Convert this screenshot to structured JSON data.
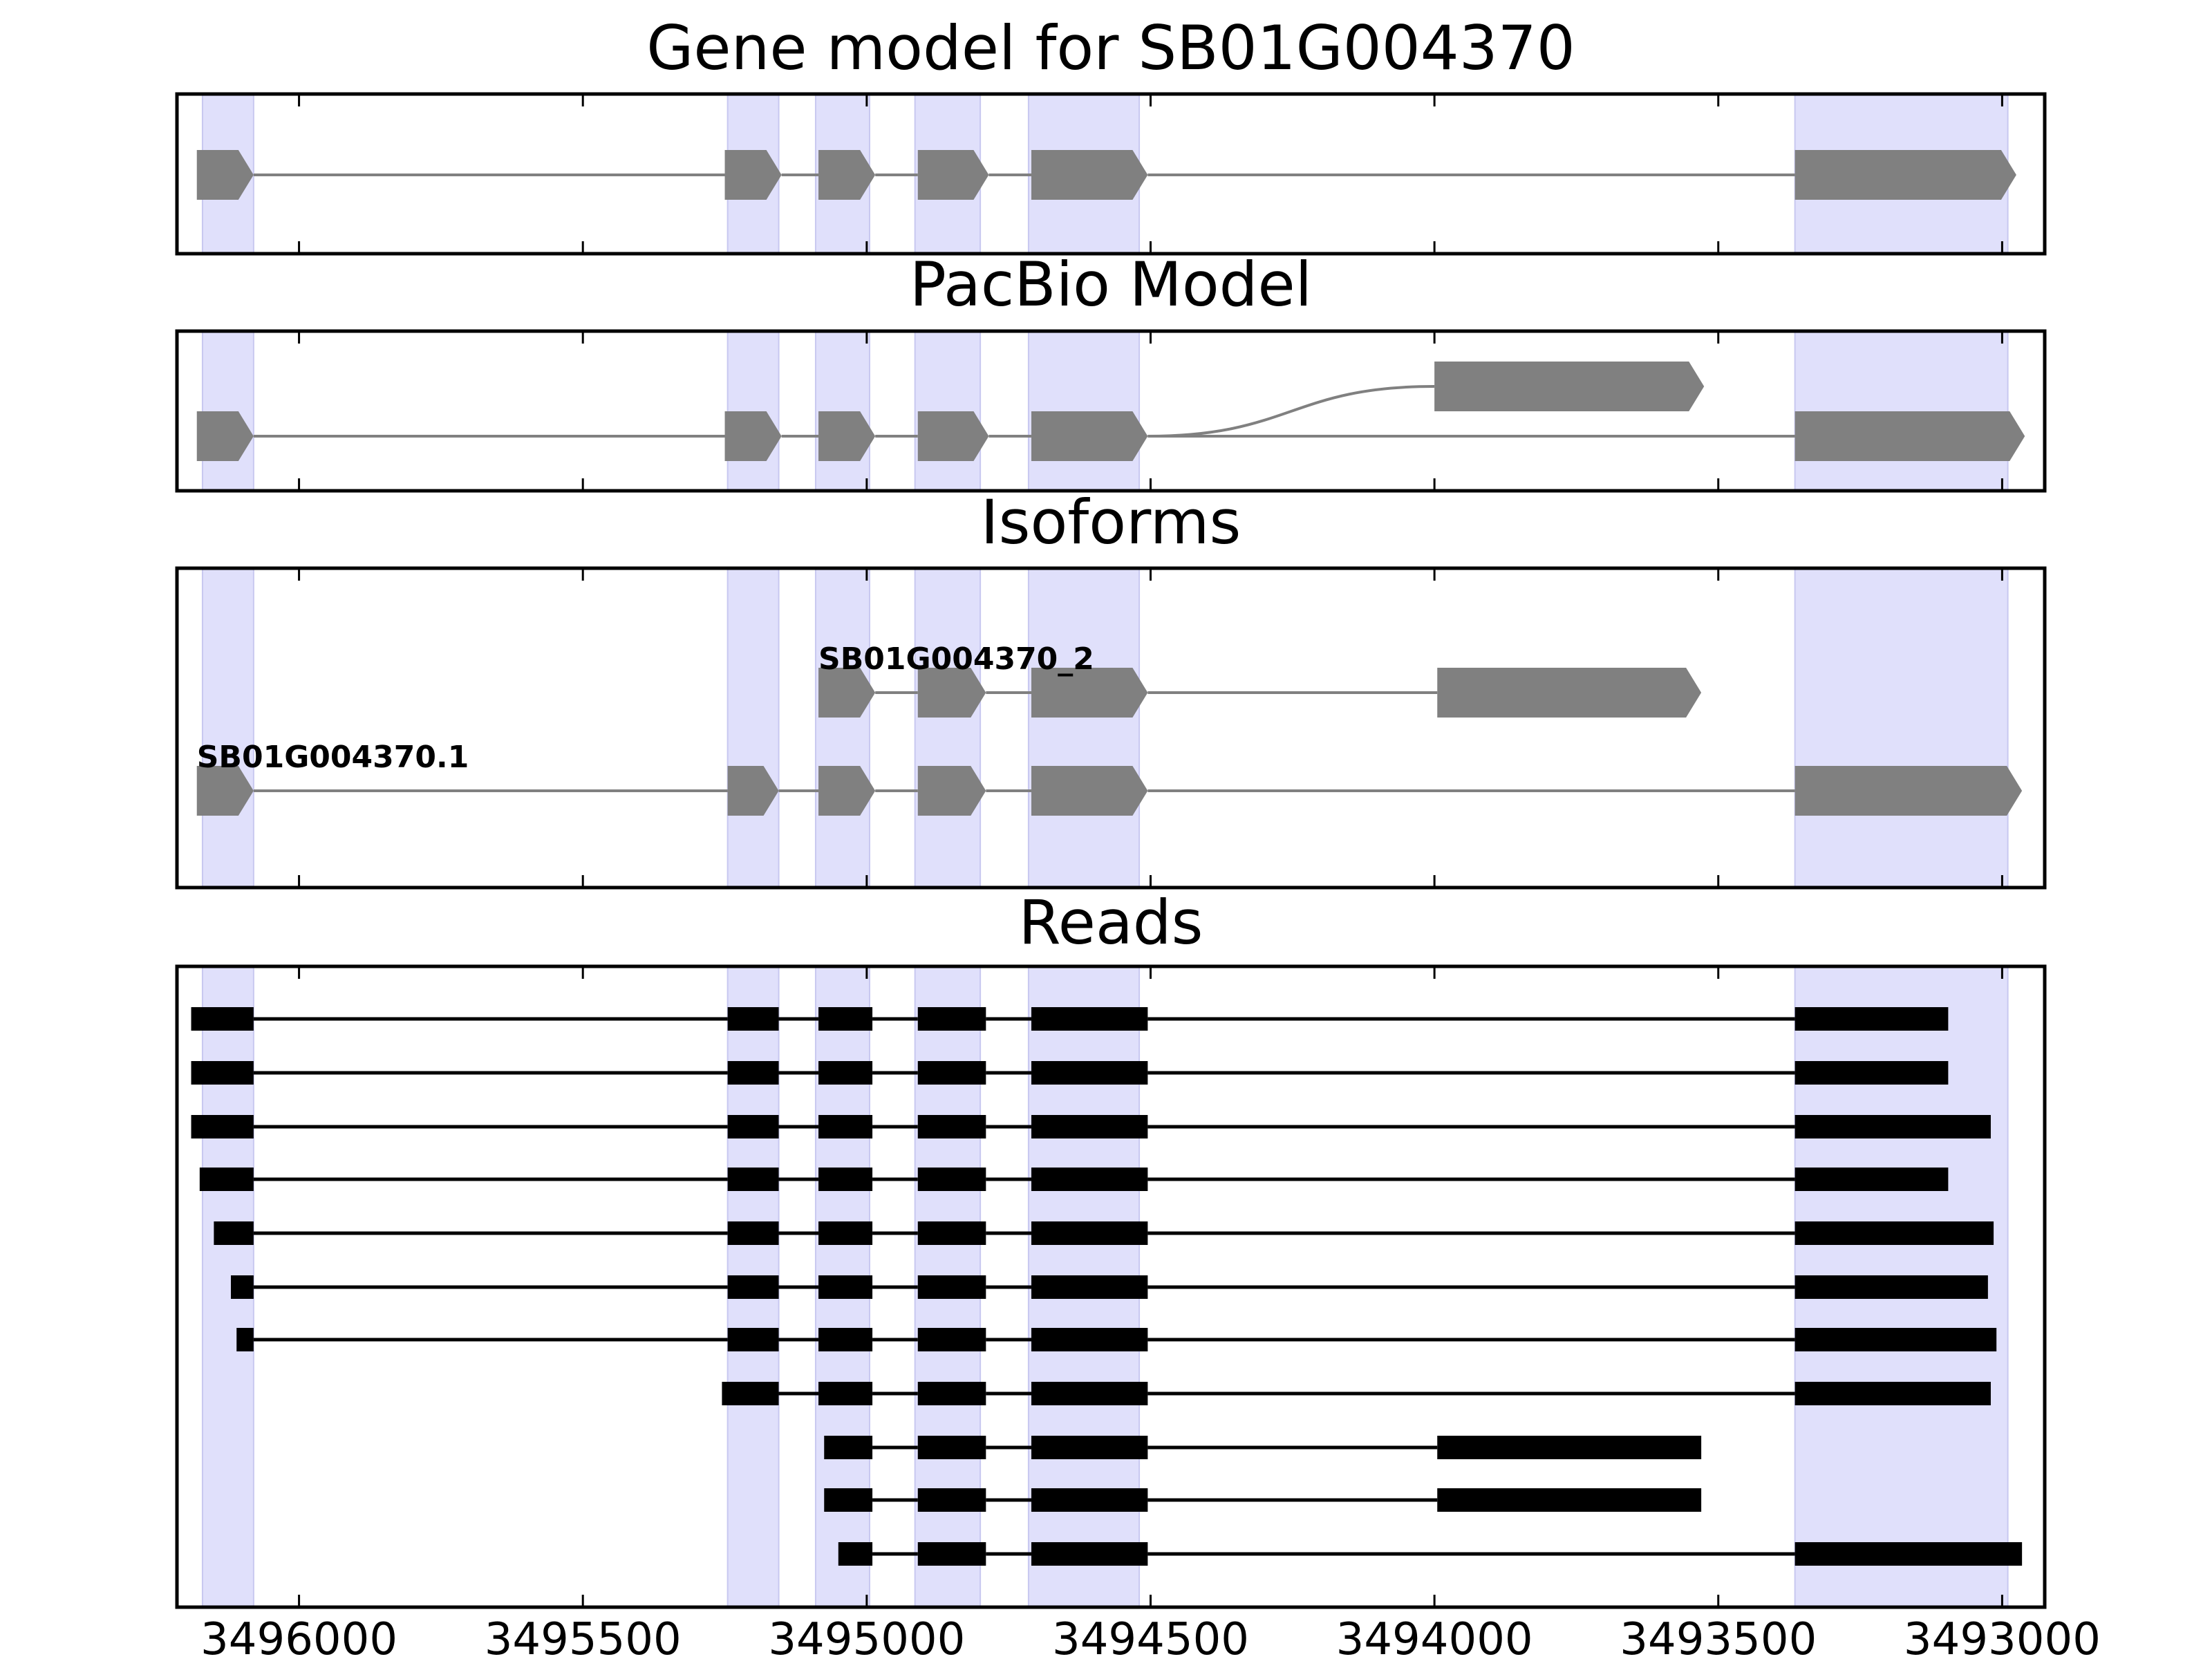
{
  "chart_data": {
    "type": "gene_model",
    "xlim": [
      3496215,
      3492925
    ],
    "x_axis_ticks": [
      3496000,
      3495500,
      3495000,
      3494500,
      3494000,
      3493500,
      3493000
    ],
    "x_axis_tick_labels": [
      "3496000",
      "3495500",
      "3495000",
      "3494500",
      "3494000",
      "3493500",
      "3493000"
    ],
    "strand": "-",
    "colors": {
      "exon_shading": "#e0e0fb",
      "model_feature": "#808080",
      "read_feature": "#000000",
      "frame": "#000000"
    },
    "exon_shading": [
      [
        3496170,
        3496080
      ],
      [
        3495245,
        3495155
      ],
      [
        3495090,
        3494995
      ],
      [
        3494915,
        3494800
      ],
      [
        3494715,
        3494520
      ],
      [
        3493365,
        3492990
      ]
    ],
    "panels": [
      {
        "key": "gene_model",
        "title": "Gene model for SB01G004370",
        "tracks": [
          {
            "label": "",
            "exons": [
              [
                3496180,
                3496080
              ],
              [
                3495250,
                3495150
              ],
              [
                3495085,
                3494985
              ],
              [
                3494910,
                3494785
              ],
              [
                3494710,
                3494505
              ],
              [
                3493365,
                3492975
              ]
            ]
          }
        ]
      },
      {
        "key": "pacbio_model",
        "title": "PacBio Model",
        "tracks": [
          {
            "label": "",
            "exons": [
              [
                3496180,
                3496080
              ],
              [
                3495250,
                3495150
              ],
              [
                3495085,
                3494985
              ],
              [
                3494910,
                3494785
              ],
              [
                3494710,
                3494505
              ],
              [
                3493365,
                3492960
              ]
            ]
          },
          {
            "label": "",
            "exons": [
              [
                3494000,
                3493525
              ]
            ],
            "branch_from": 3494505
          }
        ]
      },
      {
        "key": "isoforms",
        "title": "Isoforms",
        "tracks": [
          {
            "label": "SB01G004370.1",
            "exons": [
              [
                3496180,
                3496080
              ],
              [
                3495245,
                3495155
              ],
              [
                3495085,
                3494985
              ],
              [
                3494910,
                3494790
              ],
              [
                3494710,
                3494505
              ],
              [
                3493365,
                3492965
              ]
            ]
          },
          {
            "label": "SB01G004370_2",
            "exons": [
              [
                3495085,
                3494985
              ],
              [
                3494910,
                3494790
              ],
              [
                3494710,
                3494505
              ],
              [
                3493995,
                3493530
              ]
            ]
          }
        ]
      },
      {
        "key": "reads",
        "title": "Reads",
        "tracks": [
          {
            "label": "",
            "exons": [
              [
                3496190,
                3496080
              ],
              [
                3495245,
                3495155
              ],
              [
                3495085,
                3494990
              ],
              [
                3494910,
                3494790
              ],
              [
                3494710,
                3494505
              ],
              [
                3493365,
                3493095
              ]
            ]
          },
          {
            "label": "",
            "exons": [
              [
                3496190,
                3496080
              ],
              [
                3495245,
                3495155
              ],
              [
                3495085,
                3494990
              ],
              [
                3494910,
                3494790
              ],
              [
                3494710,
                3494505
              ],
              [
                3493365,
                3493095
              ]
            ]
          },
          {
            "label": "",
            "exons": [
              [
                3496190,
                3496080
              ],
              [
                3495245,
                3495155
              ],
              [
                3495085,
                3494990
              ],
              [
                3494910,
                3494790
              ],
              [
                3494710,
                3494505
              ],
              [
                3493365,
                3493020
              ]
            ]
          },
          {
            "label": "",
            "exons": [
              [
                3496175,
                3496080
              ],
              [
                3495245,
                3495155
              ],
              [
                3495085,
                3494990
              ],
              [
                3494910,
                3494790
              ],
              [
                3494710,
                3494505
              ],
              [
                3493365,
                3493095
              ]
            ]
          },
          {
            "label": "",
            "exons": [
              [
                3496150,
                3496080
              ],
              [
                3495245,
                3495155
              ],
              [
                3495085,
                3494990
              ],
              [
                3494910,
                3494790
              ],
              [
                3494710,
                3494505
              ],
              [
                3493365,
                3493015
              ]
            ]
          },
          {
            "label": "",
            "exons": [
              [
                3496120,
                3496080
              ],
              [
                3495245,
                3495155
              ],
              [
                3495085,
                3494990
              ],
              [
                3494910,
                3494790
              ],
              [
                3494710,
                3494505
              ],
              [
                3493365,
                3493025
              ]
            ]
          },
          {
            "label": "",
            "exons": [
              [
                3496110,
                3496080
              ],
              [
                3495245,
                3495155
              ],
              [
                3495085,
                3494990
              ],
              [
                3494910,
                3494790
              ],
              [
                3494710,
                3494505
              ],
              [
                3493365,
                3493010
              ]
            ]
          },
          {
            "label": "",
            "exons": [
              [
                3495255,
                3495155
              ],
              [
                3495085,
                3494990
              ],
              [
                3494910,
                3494790
              ],
              [
                3494710,
                3494505
              ],
              [
                3493365,
                3493020
              ]
            ]
          },
          {
            "label": "",
            "exons": [
              [
                3495075,
                3494990
              ],
              [
                3494910,
                3494790
              ],
              [
                3494710,
                3494505
              ],
              [
                3493995,
                3493530
              ]
            ]
          },
          {
            "label": "",
            "exons": [
              [
                3495075,
                3494990
              ],
              [
                3494910,
                3494790
              ],
              [
                3494710,
                3494505
              ],
              [
                3493995,
                3493530
              ]
            ]
          },
          {
            "label": "",
            "exons": [
              [
                3495050,
                3494990
              ],
              [
                3494910,
                3494790
              ],
              [
                3494710,
                3494505
              ],
              [
                3493365,
                3492965
              ]
            ]
          }
        ]
      }
    ]
  }
}
